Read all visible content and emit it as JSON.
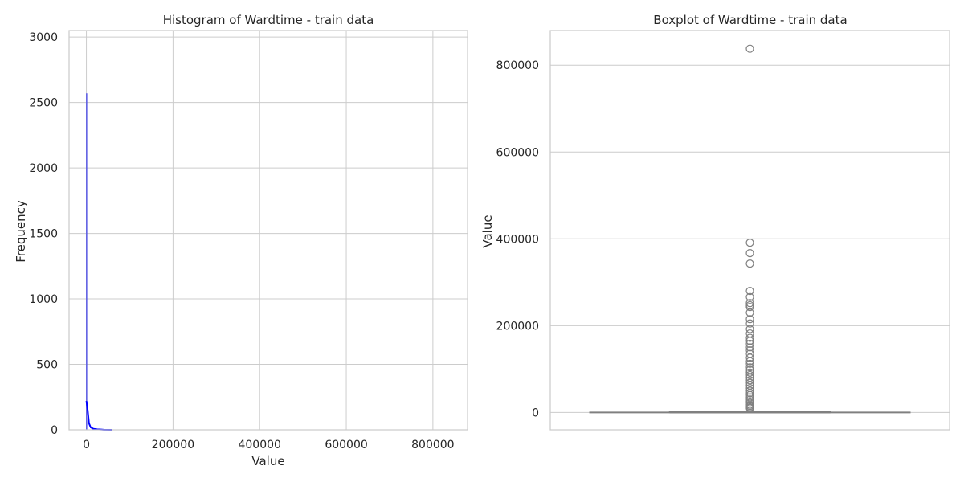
{
  "chart_data": [
    {
      "type": "histogram",
      "title": "Histogram of Wardtime - train data",
      "xlabel": "Value",
      "ylabel": "Frequency",
      "xlim": [
        -40000,
        880000
      ],
      "ylim": [
        0,
        3050
      ],
      "xticks": [
        "0",
        "200000",
        "400000",
        "600000",
        "800000"
      ],
      "xtick_values": [
        0,
        200000,
        400000,
        600000,
        800000
      ],
      "yticks": [
        "0",
        "500",
        "1000",
        "1500",
        "2000",
        "2500",
        "3000"
      ],
      "ytick_values": [
        0,
        500,
        1000,
        1500,
        2000,
        2500,
        3000
      ],
      "grid": true,
      "bar_color": "#4a4ae6",
      "kde_color": "#0000ff",
      "bins": [
        {
          "x": 0,
          "count": 2570
        }
      ],
      "kde": [
        {
          "x": 0,
          "y": 220
        },
        {
          "x": 3000,
          "y": 150
        },
        {
          "x": 6000,
          "y": 50
        },
        {
          "x": 10000,
          "y": 18
        },
        {
          "x": 16000,
          "y": 8
        },
        {
          "x": 25000,
          "y": 4
        },
        {
          "x": 40000,
          "y": 1
        },
        {
          "x": 60000,
          "y": 0
        }
      ]
    },
    {
      "type": "boxplot",
      "title": "Boxplot of Wardtime - train data",
      "xlabel": "",
      "ylabel": "Value",
      "ylim": [
        -40000,
        880000
      ],
      "yticks": [
        "0",
        "200000",
        "400000",
        "600000",
        "800000"
      ],
      "ytick_values": [
        0,
        200000,
        400000,
        600000,
        800000
      ],
      "grid": true,
      "color": "#808080",
      "box": {
        "whislo": 0,
        "q1": 0,
        "median": 0,
        "q3": 3000,
        "whishi": 7000
      },
      "outliers": [
        838000,
        391000,
        367000,
        343000,
        280000,
        266000,
        252000,
        247000,
        243000,
        230000,
        215000,
        205000,
        192000,
        182000,
        172000,
        165000,
        158000,
        150000,
        143000,
        135000,
        126000,
        118000,
        112000,
        104000,
        98000,
        92000,
        86000,
        80000,
        74000,
        68000,
        62000,
        56000,
        50000,
        45000,
        40000,
        35000,
        30000,
        26000,
        22000,
        18000,
        15000,
        12000,
        9500
      ]
    }
  ]
}
